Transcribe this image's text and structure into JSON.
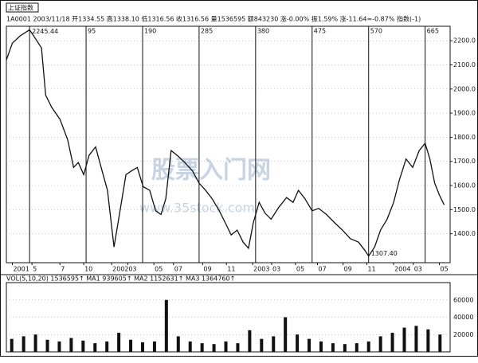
{
  "header": {
    "index_name": "上证指数",
    "info": "1A0001 2003/11/18 开1334.55 高1338.10 低1316.56 收1316.56 量1536595 额843230 涨-0.00% 振1.59% 涨-11.64=-0.87% 指数(-1)"
  },
  "watermark": {
    "name": "股票入门网",
    "url": "www.35stock.com"
  },
  "chart_data": [
    {
      "type": "line",
      "color": "#111111",
      "x": [
        -39,
        -29,
        -16,
        0,
        11,
        20,
        27,
        37,
        51,
        64,
        74,
        82,
        91,
        100,
        111,
        122,
        131,
        142,
        151,
        162,
        171,
        181,
        191,
        202,
        212,
        221,
        229,
        238,
        248,
        261,
        274,
        285,
        296,
        307,
        319,
        329,
        339,
        349,
        359,
        368,
        376,
        386,
        396,
        406,
        419,
        432,
        443,
        452,
        463,
        475,
        486,
        499,
        513,
        526,
        539,
        553,
        564,
        570,
        580,
        590,
        601,
        612,
        622,
        633,
        644,
        655,
        665,
        673,
        681,
        689,
        697
      ],
      "values": [
        2120,
        2190,
        2220,
        2245.44,
        2205,
        2170,
        1975,
        1925,
        1875,
        1790,
        1675,
        1695,
        1645,
        1725,
        1760,
        1660,
        1580,
        1345,
        1480,
        1645,
        1660,
        1675,
        1595,
        1580,
        1495,
        1480,
        1545,
        1745,
        1725,
        1695,
        1660,
        1610,
        1580,
        1545,
        1495,
        1445,
        1395,
        1415,
        1365,
        1340,
        1445,
        1530,
        1485,
        1460,
        1510,
        1550,
        1530,
        1580,
        1545,
        1495,
        1505,
        1480,
        1445,
        1415,
        1380,
        1365,
        1330,
        1307.4,
        1345,
        1415,
        1460,
        1530,
        1625,
        1710,
        1675,
        1745,
        1775,
        1710,
        1610,
        1560,
        1520
      ],
      "xlim": [
        -39,
        707
      ],
      "xticks": [
        95,
        190,
        285,
        380,
        475,
        570,
        665
      ],
      "ylim": [
        1280,
        2260
      ],
      "yticks": [
        {
          "value": 1400,
          "label": "1400.0"
        },
        {
          "value": 1500,
          "label": "1500.0"
        },
        {
          "value": 1600,
          "label": "1600.0"
        },
        {
          "value": 1700,
          "label": "1700.0"
        },
        {
          "value": 1800,
          "label": "1800.0"
        },
        {
          "value": 1900,
          "label": "1900.0"
        },
        {
          "value": 2000,
          "label": "2000.0"
        },
        {
          "value": 2100,
          "label": "2100.0"
        },
        {
          "value": 2200,
          "label": "2200.0"
        }
      ],
      "annotations": [
        {
          "x": 0,
          "y": 2245.44
        },
        {
          "x": 570,
          "y": 1307.4,
          "label": "1307.40"
        }
      ],
      "date_ticks": [
        {
          "value": -29,
          "label": "2001"
        },
        {
          "value": 4,
          "label": "5"
        },
        {
          "value": 51,
          "label": "7"
        },
        {
          "value": 91,
          "label": "10"
        },
        {
          "value": 138,
          "label": "2002"
        },
        {
          "value": 165,
          "label": "03"
        },
        {
          "value": 209,
          "label": "05"
        },
        {
          "value": 242,
          "label": "07"
        },
        {
          "value": 291,
          "label": "09"
        },
        {
          "value": 331,
          "label": "11"
        },
        {
          "value": 375,
          "label": "2003"
        },
        {
          "value": 407,
          "label": "03"
        },
        {
          "value": 447,
          "label": "05"
        },
        {
          "value": 484,
          "label": "07"
        },
        {
          "value": 527,
          "label": "09"
        },
        {
          "value": 567,
          "label": "11"
        },
        {
          "value": 612,
          "label": "2004"
        },
        {
          "value": 645,
          "label": "03"
        },
        {
          "value": 689,
          "label": "05"
        }
      ]
    },
    {
      "type": "bar",
      "title": "VOL(5,10,20) 1536595↑ MA1 939605↑ MA2 1152631↑ MA3 1364760↑",
      "color": "#111111",
      "x": [
        -30,
        -10,
        10,
        30,
        50,
        70,
        90,
        110,
        130,
        150,
        170,
        190,
        210,
        230,
        250,
        270,
        290,
        310,
        330,
        350,
        370,
        390,
        410,
        430,
        450,
        470,
        490,
        510,
        530,
        550,
        570,
        590,
        610,
        630,
        650,
        670,
        690
      ],
      "values": [
        15000,
        18000,
        20000,
        14000,
        12000,
        16000,
        13000,
        10000,
        12000,
        22000,
        14000,
        11000,
        12000,
        60000,
        18000,
        12000,
        10000,
        9000,
        12000,
        10000,
        25000,
        15000,
        18000,
        40000,
        20000,
        15000,
        12000,
        10000,
        9000,
        10000,
        12000,
        18000,
        22000,
        28000,
        30000,
        26000,
        20000
      ],
      "xlim": [
        -39,
        707
      ],
      "ylim": [
        0,
        80000
      ],
      "yticks": [
        20000,
        40000,
        60000
      ]
    }
  ]
}
